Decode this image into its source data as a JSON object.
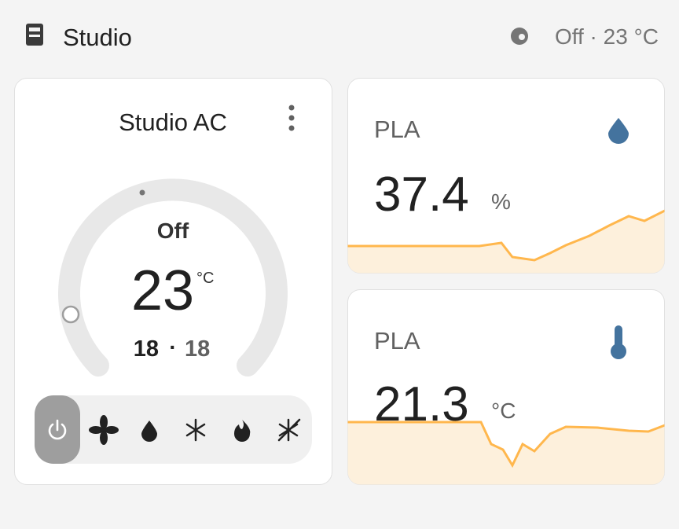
{
  "header": {
    "title": "Studio",
    "status": "Off · 23 °C"
  },
  "thermostat": {
    "name": "Studio AC",
    "state": "Off",
    "target": "23",
    "unit": "°C",
    "current_low": "18",
    "separator": "·",
    "current_high": "18"
  },
  "sensors": [
    {
      "name": "PLA",
      "value": "37.4",
      "unit": "%"
    },
    {
      "name": "PLA",
      "value": "21.3",
      "unit": "°C"
    }
  ]
}
